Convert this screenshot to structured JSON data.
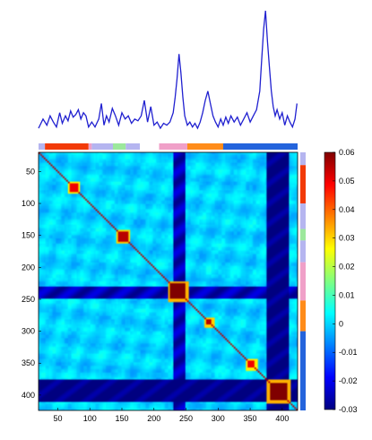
{
  "chart_data": {
    "type": "heatmap",
    "title": "",
    "xlabel": "",
    "ylabel": "",
    "n": 420,
    "xlim": [
      20,
      424
    ],
    "ylim": [
      20,
      424
    ],
    "x_ticks": [
      50,
      100,
      150,
      200,
      250,
      300,
      350,
      400
    ],
    "y_ticks": [
      50,
      100,
      150,
      200,
      250,
      300,
      350,
      400
    ],
    "colorbar": {
      "min": -0.03,
      "max": 0.06,
      "ticks": [
        "0.06",
        "0.05",
        "0.04",
        "0.03",
        "0.02",
        "0.01",
        "0",
        "-0.01",
        "-0.02",
        "-0.03"
      ],
      "colormap": "jet"
    },
    "hot_blocks": [
      {
        "center": 75,
        "half_width": 6,
        "value": 0.05
      },
      {
        "center": 152,
        "half_width": 7,
        "value": 0.055
      },
      {
        "center": 237,
        "half_width": 12,
        "value": 0.06
      },
      {
        "center": 286,
        "half_width": 4,
        "value": 0.055
      },
      {
        "center": 352,
        "half_width": 5,
        "value": 0.05
      },
      {
        "center": 394,
        "half_width": 14,
        "value": 0.06
      }
    ],
    "cold_bands": [
      {
        "from": 230,
        "to": 250,
        "value": -0.025
      },
      {
        "from": 376,
        "to": 410,
        "value": -0.03
      }
    ],
    "segments": [
      {
        "from": 20,
        "to": 30,
        "color": "#b5b5f0"
      },
      {
        "from": 30,
        "to": 98,
        "color": "#f23a08"
      },
      {
        "from": 98,
        "to": 103,
        "color": "#f0a0c8"
      },
      {
        "from": 103,
        "to": 136,
        "color": "#b5b5f0"
      },
      {
        "from": 136,
        "to": 156,
        "color": "#9ce89c"
      },
      {
        "from": 156,
        "to": 178,
        "color": "#b5b5f0"
      },
      {
        "from": 178,
        "to": 208,
        "color": "#ffffff"
      },
      {
        "from": 208,
        "to": 252,
        "color": "#f0a0c8"
      },
      {
        "from": 252,
        "to": 308,
        "color": "#ff8c1a"
      },
      {
        "from": 308,
        "to": 424,
        "color": "#2464dc"
      }
    ],
    "side_segments": [
      {
        "from": 20,
        "to": 40,
        "color": "#b5b5f0"
      },
      {
        "from": 40,
        "to": 100,
        "color": "#f23a08"
      },
      {
        "from": 100,
        "to": 140,
        "color": "#b5b5f0"
      },
      {
        "from": 140,
        "to": 158,
        "color": "#9ce89c"
      },
      {
        "from": 158,
        "to": 192,
        "color": "#b5b5f0"
      },
      {
        "from": 192,
        "to": 252,
        "color": "#f0a0c8"
      },
      {
        "from": 252,
        "to": 300,
        "color": "#ff8c1a"
      },
      {
        "from": 300,
        "to": 424,
        "color": "#2464dc"
      }
    ],
    "profile": {
      "color": "#2020d0",
      "x": [
        20,
        27,
        33,
        38,
        43,
        48,
        53,
        57,
        62,
        66,
        70,
        74,
        78,
        82,
        86,
        90,
        94,
        98,
        103,
        108,
        114,
        118,
        122,
        126,
        130,
        135,
        140,
        145,
        150,
        155,
        160,
        165,
        170,
        175,
        180,
        185,
        190,
        195,
        200,
        205,
        210,
        215,
        220,
        225,
        230,
        233,
        236,
        239,
        242,
        245,
        248,
        252,
        256,
        260,
        264,
        268,
        272,
        276,
        280,
        284,
        288,
        292,
        296,
        300,
        304,
        308,
        312,
        316,
        320,
        325,
        330,
        335,
        340,
        345,
        350,
        355,
        360,
        365,
        368,
        371,
        374,
        377,
        380,
        383,
        386,
        389,
        392,
        396,
        400,
        404,
        408,
        412,
        416,
        420,
        423
      ],
      "values": [
        0.1,
        0.25,
        0.15,
        0.3,
        0.2,
        0.12,
        0.35,
        0.18,
        0.3,
        0.22,
        0.38,
        0.28,
        0.32,
        0.4,
        0.25,
        0.35,
        0.3,
        0.12,
        0.2,
        0.12,
        0.25,
        0.5,
        0.15,
        0.3,
        0.2,
        0.42,
        0.3,
        0.15,
        0.35,
        0.25,
        0.3,
        0.18,
        0.25,
        0.22,
        0.3,
        0.55,
        0.2,
        0.45,
        0.15,
        0.2,
        0.1,
        0.18,
        0.15,
        0.2,
        0.35,
        0.6,
        0.9,
        1.3,
        1.0,
        0.6,
        0.3,
        0.15,
        0.2,
        0.12,
        0.18,
        0.1,
        0.2,
        0.35,
        0.55,
        0.7,
        0.5,
        0.3,
        0.2,
        0.12,
        0.25,
        0.15,
        0.28,
        0.18,
        0.3,
        0.2,
        0.28,
        0.15,
        0.25,
        0.35,
        0.2,
        0.3,
        0.4,
        0.7,
        1.2,
        1.7,
        2.0,
        1.5,
        1.1,
        0.7,
        0.45,
        0.3,
        0.4,
        0.25,
        0.35,
        0.15,
        0.3,
        0.2,
        0.12,
        0.25,
        0.5
      ]
    }
  }
}
